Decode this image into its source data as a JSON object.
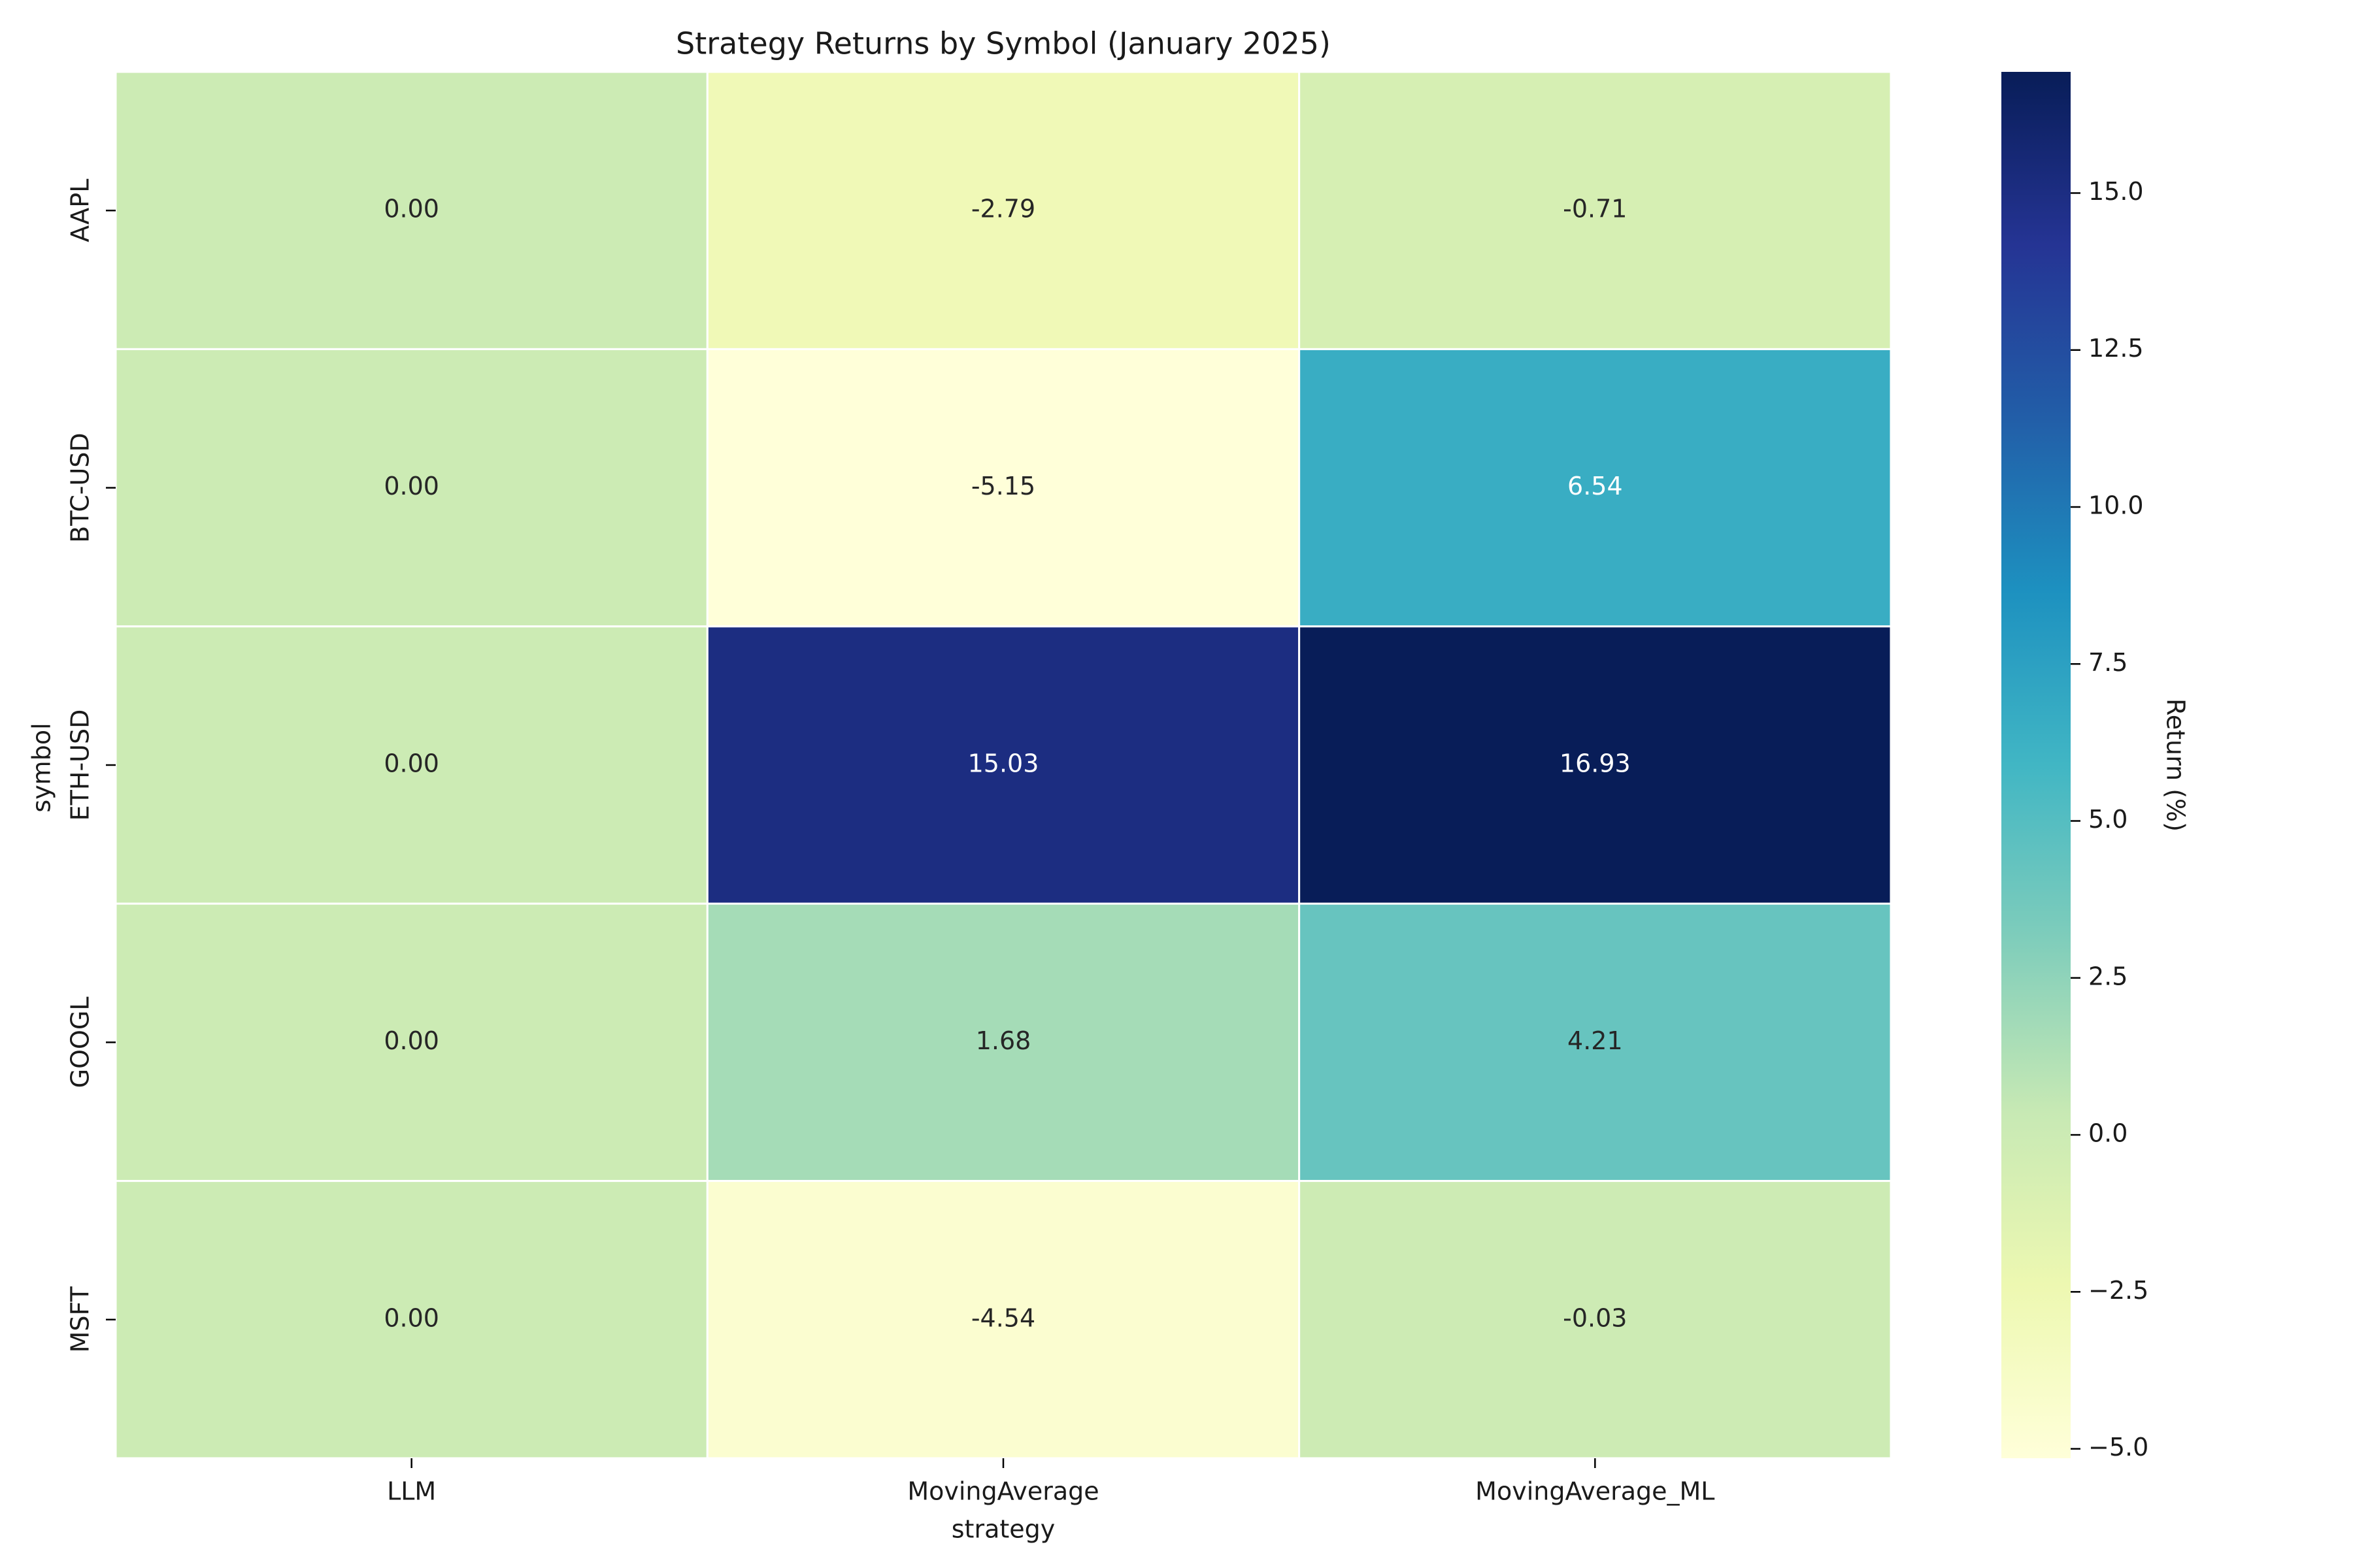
{
  "chart_data": {
    "type": "heatmap",
    "title": "Strategy Returns by Symbol (January 2025)",
    "xlabel": "strategy",
    "ylabel": "symbol",
    "x_categories": [
      "LLM",
      "MovingAverage",
      "MovingAverage_ML"
    ],
    "y_categories": [
      "AAPL",
      "BTC-USD",
      "ETH-USD",
      "GOOGL",
      "MSFT"
    ],
    "values": [
      [
        0.0,
        -2.79,
        -0.71
      ],
      [
        0.0,
        -5.15,
        6.54
      ],
      [
        0.0,
        15.03,
        16.93
      ],
      [
        0.0,
        1.68,
        4.21
      ],
      [
        0.0,
        -4.54,
        -0.03
      ]
    ],
    "cell_labels": [
      [
        "0.00",
        "-2.79",
        "-0.71"
      ],
      [
        "0.00",
        "-5.15",
        "6.54"
      ],
      [
        "0.00",
        "15.03",
        "16.93"
      ],
      [
        "0.00",
        "1.68",
        "4.21"
      ],
      [
        "0.00",
        "-4.54",
        "-0.03"
      ]
    ],
    "colorbar": {
      "label": "Return (%)",
      "colormap": "YlGnBu",
      "range": [
        -5.15,
        16.93
      ],
      "ticks": [
        -5.0,
        -2.5,
        0.0,
        2.5,
        5.0,
        7.5,
        10.0,
        12.5,
        15.0
      ],
      "tick_labels": [
        "−5.0",
        "−2.5",
        "0.0",
        "2.5",
        "5.0",
        "7.5",
        "10.0",
        "12.5",
        "15.0"
      ]
    },
    "colors": {
      "cell_border": "#ffffff",
      "dark_text": "#262626",
      "light_text": "#ffffff"
    }
  }
}
